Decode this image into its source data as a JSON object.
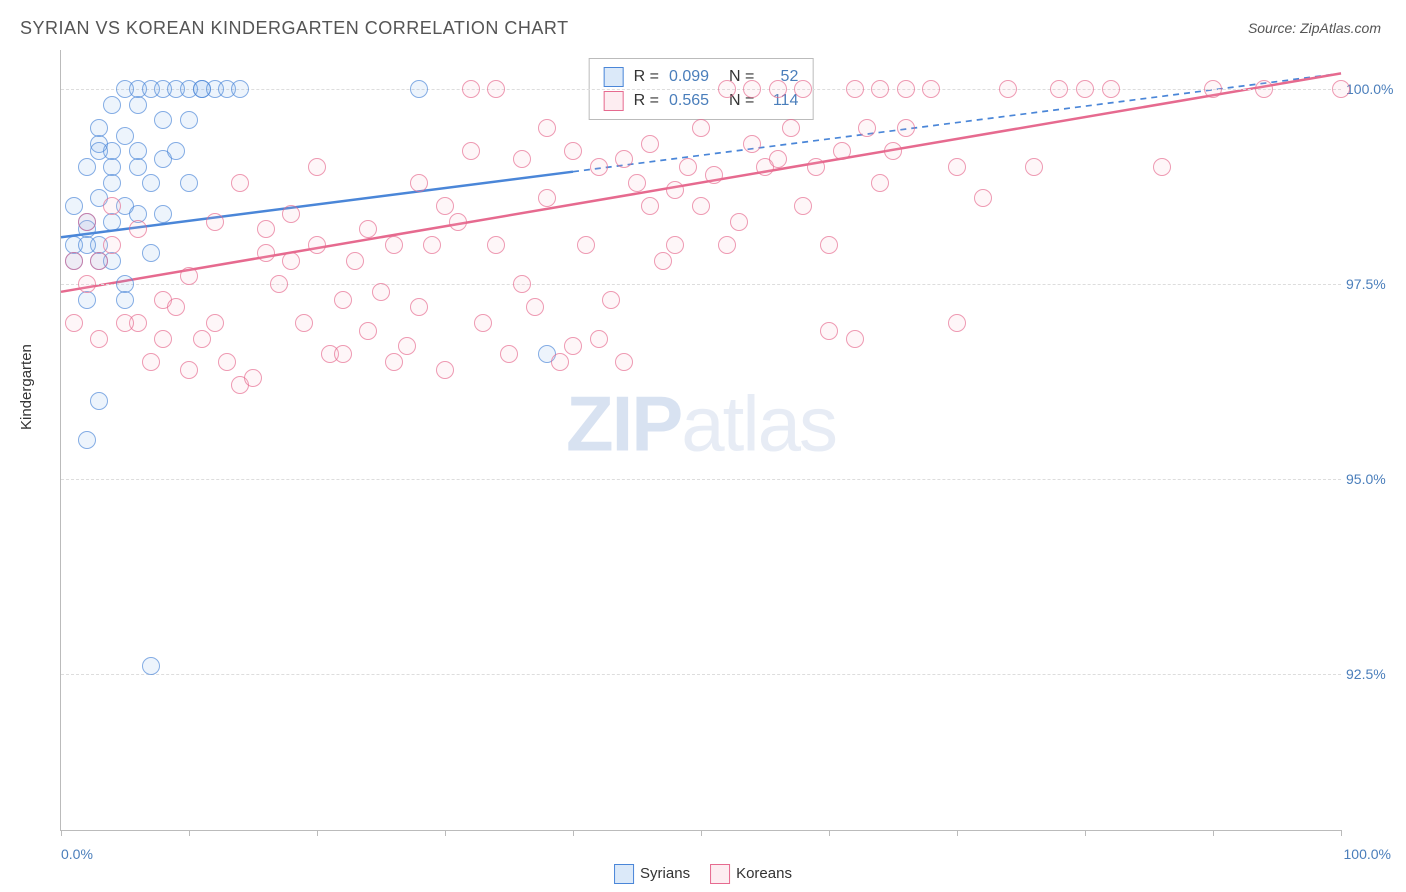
{
  "title": "SYRIAN VS KOREAN KINDERGARTEN CORRELATION CHART",
  "source_label": "Source:",
  "source_value": "ZipAtlas.com",
  "y_axis_label": "Kindergarten",
  "watermark": {
    "part1": "ZIP",
    "part2": "atlas"
  },
  "chart": {
    "type": "scatter",
    "background_color": "#ffffff",
    "grid_color": "#dddddd",
    "axis_color": "#bbbbbb",
    "text_color": "#555555",
    "value_color": "#4a7ebb",
    "xlim": [
      0,
      100
    ],
    "ylim": [
      90.5,
      100.5
    ],
    "x_ticks": [
      0,
      10,
      20,
      30,
      40,
      50,
      60,
      70,
      80,
      90,
      100
    ],
    "x_tick_labels": {
      "0": "0.0%",
      "100": "100.0%"
    },
    "y_ticks": [
      92.5,
      95.0,
      97.5,
      100.0
    ],
    "y_tick_labels": [
      "92.5%",
      "95.0%",
      "97.5%",
      "100.0%"
    ],
    "marker_radius": 9,
    "marker_border_width": 1.2,
    "marker_fill_opacity": 0.18,
    "line_width": 2.5
  },
  "series": [
    {
      "name": "Syrians",
      "color": "#6ea8e8",
      "border": "#4a86d8",
      "stats": {
        "R": "0.099",
        "N": "52"
      },
      "trend": {
        "x1": 0,
        "y1": 98.1,
        "x2": 100,
        "y2": 100.2,
        "dash_after_x": 40
      },
      "points": [
        [
          2,
          99.0
        ],
        [
          3,
          98.0
        ],
        [
          4,
          99.0
        ],
        [
          6,
          99.8
        ],
        [
          8,
          99.6
        ],
        [
          10,
          99.6
        ],
        [
          11,
          100.0
        ],
        [
          3,
          96.0
        ],
        [
          5,
          97.5
        ],
        [
          2,
          95.5
        ],
        [
          7,
          92.6
        ],
        [
          1,
          98.5
        ],
        [
          2,
          98.2
        ],
        [
          3,
          99.3
        ],
        [
          5,
          100.0
        ],
        [
          6,
          100.0
        ],
        [
          7,
          100.0
        ],
        [
          8,
          100.0
        ],
        [
          9,
          100.0
        ],
        [
          10,
          100.0
        ],
        [
          11,
          100.0
        ],
        [
          12,
          100.0
        ],
        [
          13,
          100.0
        ],
        [
          14,
          100.0
        ],
        [
          4,
          99.2
        ],
        [
          3,
          99.2
        ],
        [
          6,
          99.0
        ],
        [
          7,
          98.8
        ],
        [
          8,
          99.1
        ],
        [
          4,
          98.3
        ],
        [
          5,
          98.5
        ],
        [
          2,
          97.3
        ],
        [
          3,
          97.8
        ],
        [
          1,
          98.0
        ],
        [
          1,
          97.8
        ],
        [
          2,
          98.3
        ],
        [
          3,
          98.6
        ],
        [
          4,
          98.8
        ],
        [
          6,
          98.4
        ],
        [
          8,
          98.4
        ],
        [
          4,
          97.8
        ],
        [
          5,
          97.3
        ],
        [
          2,
          98.0
        ],
        [
          3,
          99.5
        ],
        [
          4,
          99.8
        ],
        [
          5,
          99.4
        ],
        [
          6,
          99.2
        ],
        [
          28,
          100.0
        ],
        [
          7,
          97.9
        ],
        [
          9,
          99.2
        ],
        [
          10,
          98.8
        ],
        [
          38,
          96.6
        ]
      ]
    },
    {
      "name": "Koreans",
      "color": "#f7b9c9",
      "border": "#e66a8f",
      "stats": {
        "R": "0.565",
        "N": "114"
      },
      "trend": {
        "x1": 0,
        "y1": 97.4,
        "x2": 100,
        "y2": 100.2,
        "dash_after_x": 100
      },
      "points": [
        [
          1,
          97.0
        ],
        [
          2,
          97.5
        ],
        [
          3,
          97.8
        ],
        [
          4,
          98.0
        ],
        [
          6,
          97.0
        ],
        [
          8,
          97.3
        ],
        [
          10,
          96.4
        ],
        [
          12,
          97.0
        ],
        [
          14,
          96.2
        ],
        [
          16,
          97.9
        ],
        [
          18,
          98.4
        ],
        [
          20,
          98.0
        ],
        [
          22,
          97.3
        ],
        [
          24,
          98.2
        ],
        [
          26,
          98.0
        ],
        [
          28,
          98.8
        ],
        [
          30,
          98.5
        ],
        [
          32,
          100.0
        ],
        [
          34,
          100.0
        ],
        [
          36,
          99.1
        ],
        [
          38,
          98.6
        ],
        [
          40,
          96.7
        ],
        [
          42,
          99.0
        ],
        [
          44,
          99.1
        ],
        [
          46,
          98.5
        ],
        [
          48,
          98.7
        ],
        [
          50,
          98.5
        ],
        [
          52,
          100.0
        ],
        [
          54,
          99.3
        ],
        [
          56,
          100.0
        ],
        [
          58,
          100.0
        ],
        [
          60,
          98.0
        ],
        [
          62,
          96.8
        ],
        [
          64,
          100.0
        ],
        [
          66,
          100.0
        ],
        [
          68,
          100.0
        ],
        [
          70,
          99.0
        ],
        [
          72,
          98.6
        ],
        [
          74,
          100.0
        ],
        [
          76,
          99.0
        ],
        [
          80,
          100.0
        ],
        [
          86,
          99.0
        ],
        [
          90,
          100.0
        ],
        [
          94,
          100.0
        ],
        [
          100,
          100.0
        ],
        [
          3,
          96.8
        ],
        [
          5,
          97.0
        ],
        [
          7,
          96.5
        ],
        [
          9,
          97.2
        ],
        [
          11,
          96.8
        ],
        [
          13,
          96.5
        ],
        [
          15,
          96.3
        ],
        [
          17,
          97.5
        ],
        [
          19,
          97.0
        ],
        [
          21,
          96.6
        ],
        [
          23,
          97.8
        ],
        [
          25,
          97.4
        ],
        [
          27,
          96.7
        ],
        [
          29,
          98.0
        ],
        [
          31,
          98.3
        ],
        [
          33,
          97.0
        ],
        [
          35,
          96.6
        ],
        [
          37,
          97.2
        ],
        [
          39,
          96.5
        ],
        [
          41,
          98.0
        ],
        [
          43,
          97.3
        ],
        [
          45,
          98.8
        ],
        [
          47,
          97.8
        ],
        [
          49,
          99.0
        ],
        [
          51,
          98.9
        ],
        [
          53,
          98.3
        ],
        [
          55,
          99.0
        ],
        [
          57,
          99.5
        ],
        [
          59,
          99.0
        ],
        [
          61,
          99.2
        ],
        [
          63,
          99.5
        ],
        [
          65,
          99.2
        ],
        [
          1,
          97.8
        ],
        [
          2,
          98.3
        ],
        [
          4,
          98.5
        ],
        [
          6,
          98.2
        ],
        [
          8,
          96.8
        ],
        [
          10,
          97.6
        ],
        [
          12,
          98.3
        ],
        [
          14,
          98.8
        ],
        [
          16,
          98.2
        ],
        [
          18,
          97.8
        ],
        [
          20,
          99.0
        ],
        [
          22,
          96.6
        ],
        [
          24,
          96.9
        ],
        [
          26,
          96.5
        ],
        [
          28,
          97.2
        ],
        [
          30,
          96.4
        ],
        [
          32,
          99.2
        ],
        [
          34,
          98.0
        ],
        [
          36,
          97.5
        ],
        [
          38,
          99.5
        ],
        [
          40,
          99.2
        ],
        [
          42,
          96.8
        ],
        [
          44,
          96.5
        ],
        [
          46,
          99.3
        ],
        [
          48,
          98.0
        ],
        [
          50,
          99.5
        ],
        [
          52,
          98.0
        ],
        [
          54,
          100.0
        ],
        [
          56,
          99.1
        ],
        [
          58,
          98.5
        ],
        [
          60,
          96.9
        ],
        [
          62,
          100.0
        ],
        [
          64,
          98.8
        ],
        [
          66,
          99.5
        ],
        [
          70,
          97.0
        ],
        [
          78,
          100.0
        ],
        [
          82,
          100.0
        ]
      ]
    }
  ],
  "stats_labels": {
    "R": "R =",
    "N": "N ="
  },
  "legend_bottom": [
    "Syrians",
    "Koreans"
  ]
}
